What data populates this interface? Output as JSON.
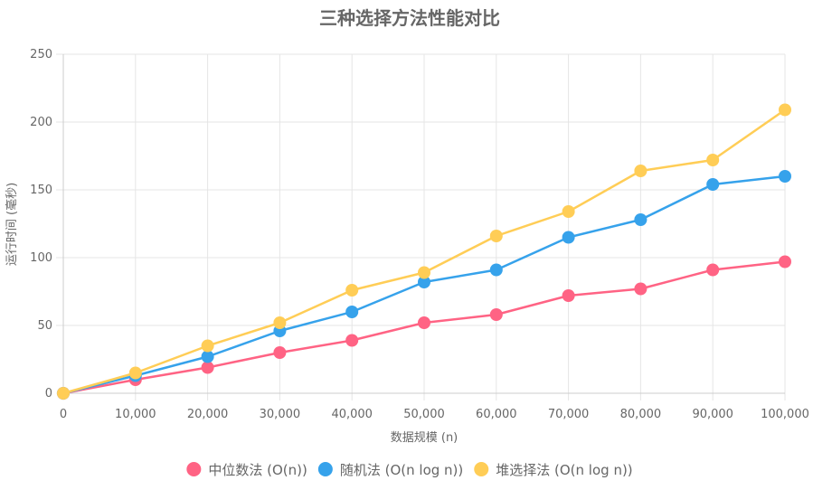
{
  "chart_data": {
    "type": "line",
    "title": "三种选择方法性能对比",
    "xlabel": "数据规模 (n)",
    "ylabel": "运行时间 (毫秒)",
    "x": [
      0,
      10000,
      20000,
      30000,
      40000,
      50000,
      60000,
      70000,
      80000,
      90000,
      100000
    ],
    "x_tick_labels": [
      "0",
      "10,000",
      "20,000",
      "30,000",
      "40,000",
      "50,000",
      "60,000",
      "70,000",
      "80,000",
      "90,000",
      "100,000"
    ],
    "ylim": [
      0,
      250
    ],
    "y_ticks": [
      0,
      50,
      100,
      150,
      200,
      250
    ],
    "grid": true,
    "legend_position": "bottom",
    "series": [
      {
        "name": "中位数法 (O(n))",
        "color": "#ff6384",
        "values": [
          0,
          10,
          19,
          30,
          39,
          52,
          58,
          72,
          77,
          91,
          97
        ]
      },
      {
        "name": "随机法 (O(n log n))",
        "color": "#36a2eb",
        "values": [
          0,
          13,
          27,
          46,
          60,
          82,
          91,
          115,
          128,
          154,
          160
        ]
      },
      {
        "name": "堆选择法 (O(n log n))",
        "color": "#ffcd56",
        "values": [
          0,
          15,
          35,
          52,
          76,
          89,
          116,
          134,
          164,
          172,
          209
        ]
      }
    ]
  }
}
